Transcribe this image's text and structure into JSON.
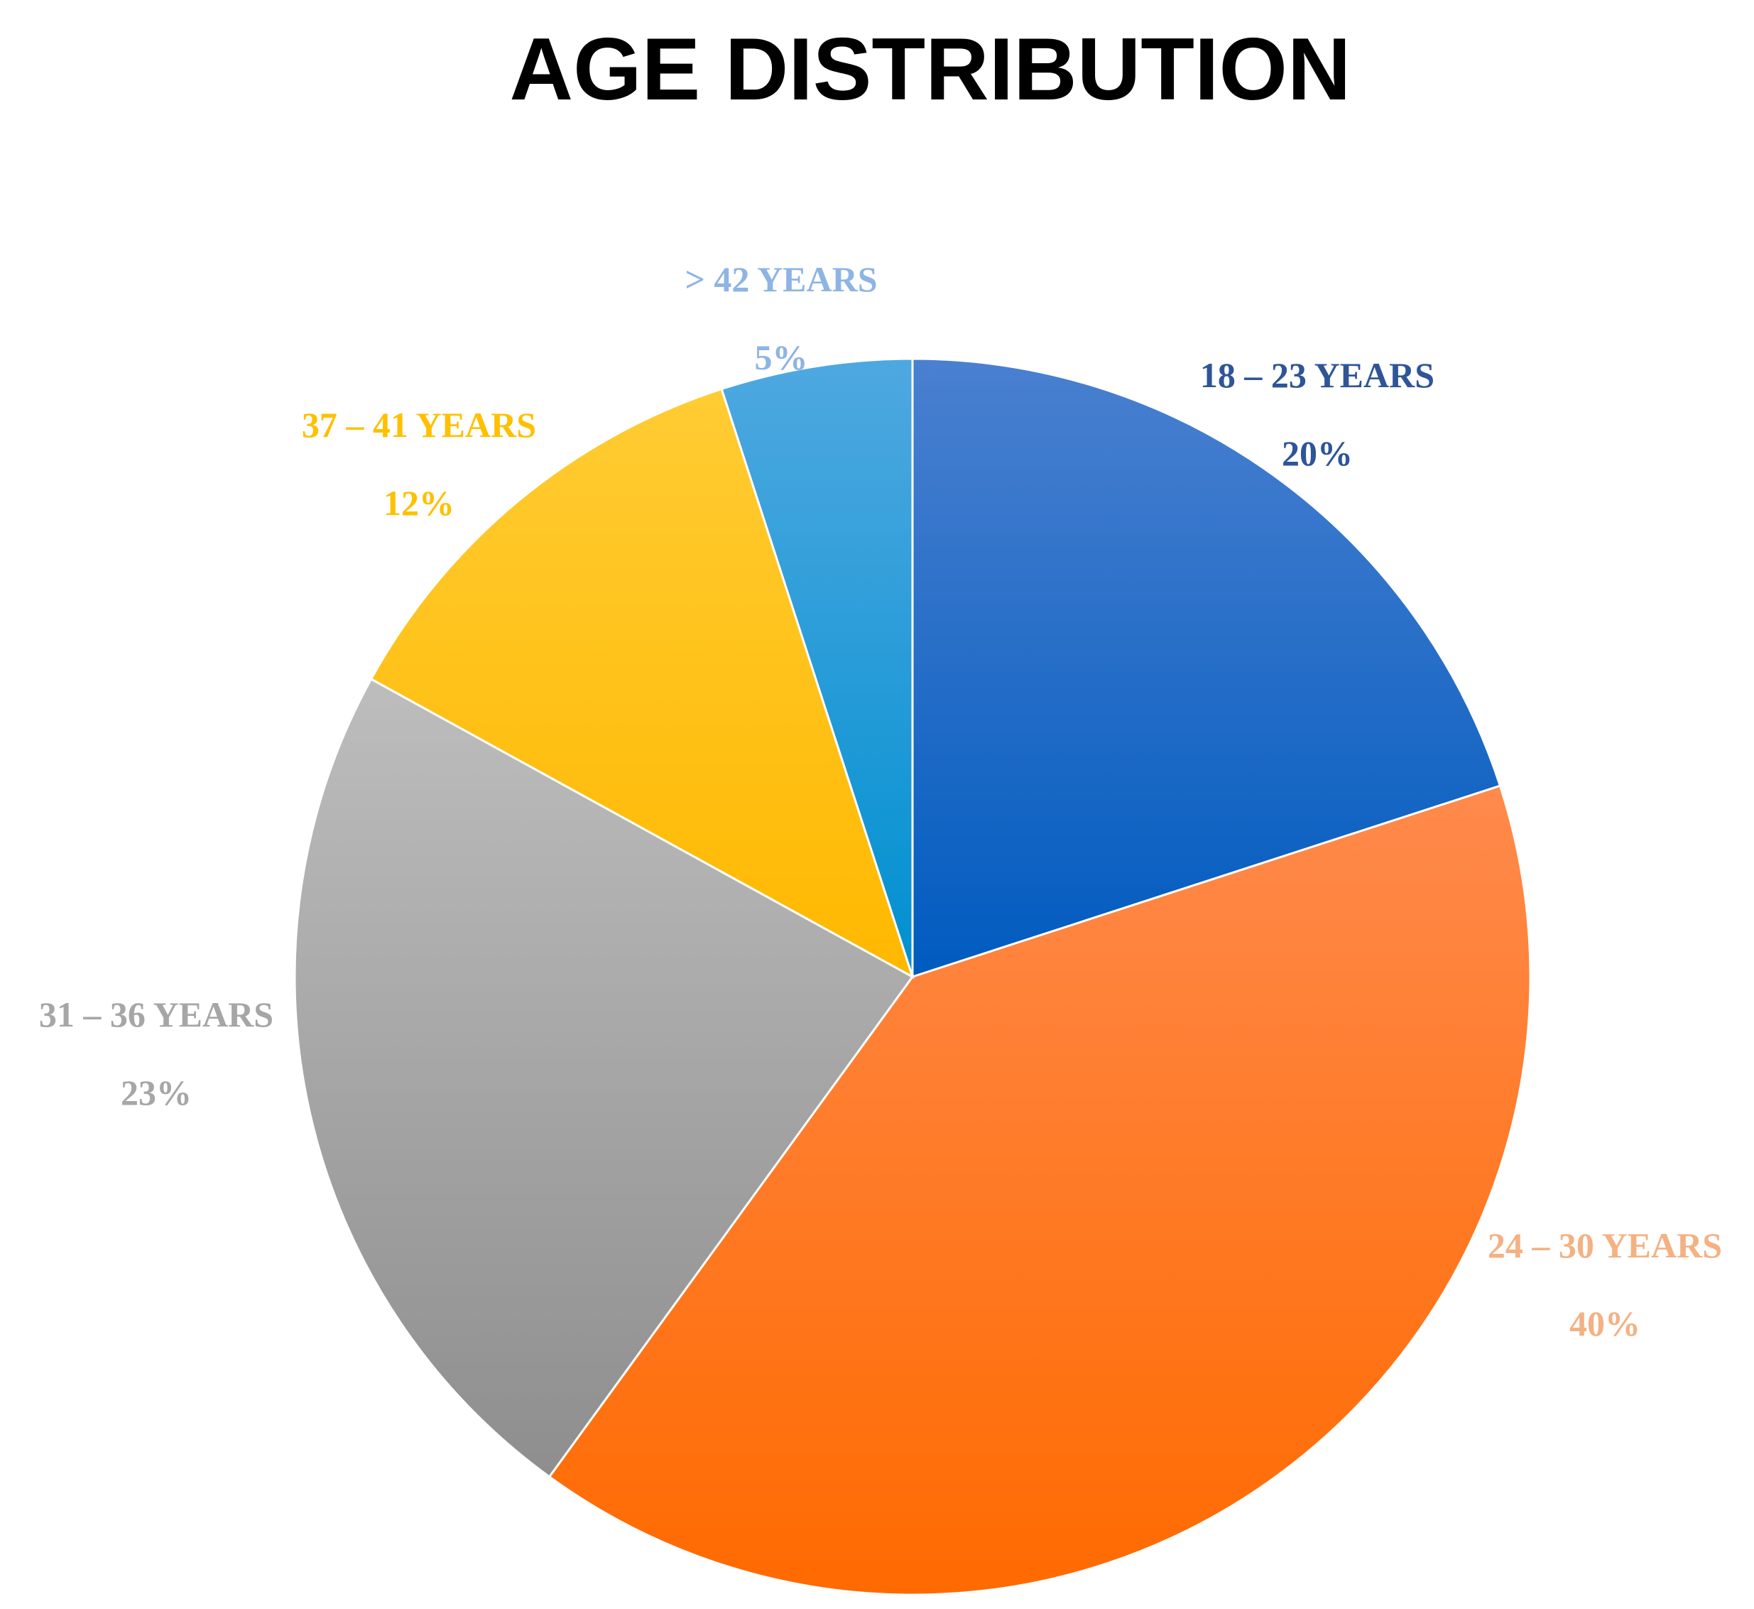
{
  "chart_data": {
    "type": "pie",
    "title": "AGE DISTRIBUTION",
    "slices": [
      {
        "label": "18 – 23 YEARS",
        "value": 20,
        "value_label": "20%",
        "color_top": "#4A80D0",
        "color_bottom": "#005BBF",
        "label_color": "#2F5597"
      },
      {
        "label": "24 – 30 YEARS",
        "value": 40,
        "value_label": "40%",
        "color_top": "#FF8A4C",
        "color_bottom": "#FF6A00",
        "label_color": "#F4B183"
      },
      {
        "label": "31 – 36 YEARS",
        "value": 23,
        "value_label": "23%",
        "color_top": "#BDBDBD",
        "color_bottom": "#8E8E8E",
        "label_color": "#A6A6A6"
      },
      {
        "label": "37 – 41 YEARS",
        "value": 12,
        "value_label": "12%",
        "color_top": "#FFCC33",
        "color_bottom": "#FFB800",
        "label_color": "#FFC000"
      },
      {
        "label": "> 42 YEARS",
        "value": 5,
        "value_label": "5%",
        "color_top": "#4FA8E0",
        "color_bottom": "#0090D0",
        "label_color": "#8EB4E3"
      }
    ],
    "start_angle_deg": 0,
    "direction": "clockwise",
    "legend": "none",
    "data_labels": "outside"
  }
}
